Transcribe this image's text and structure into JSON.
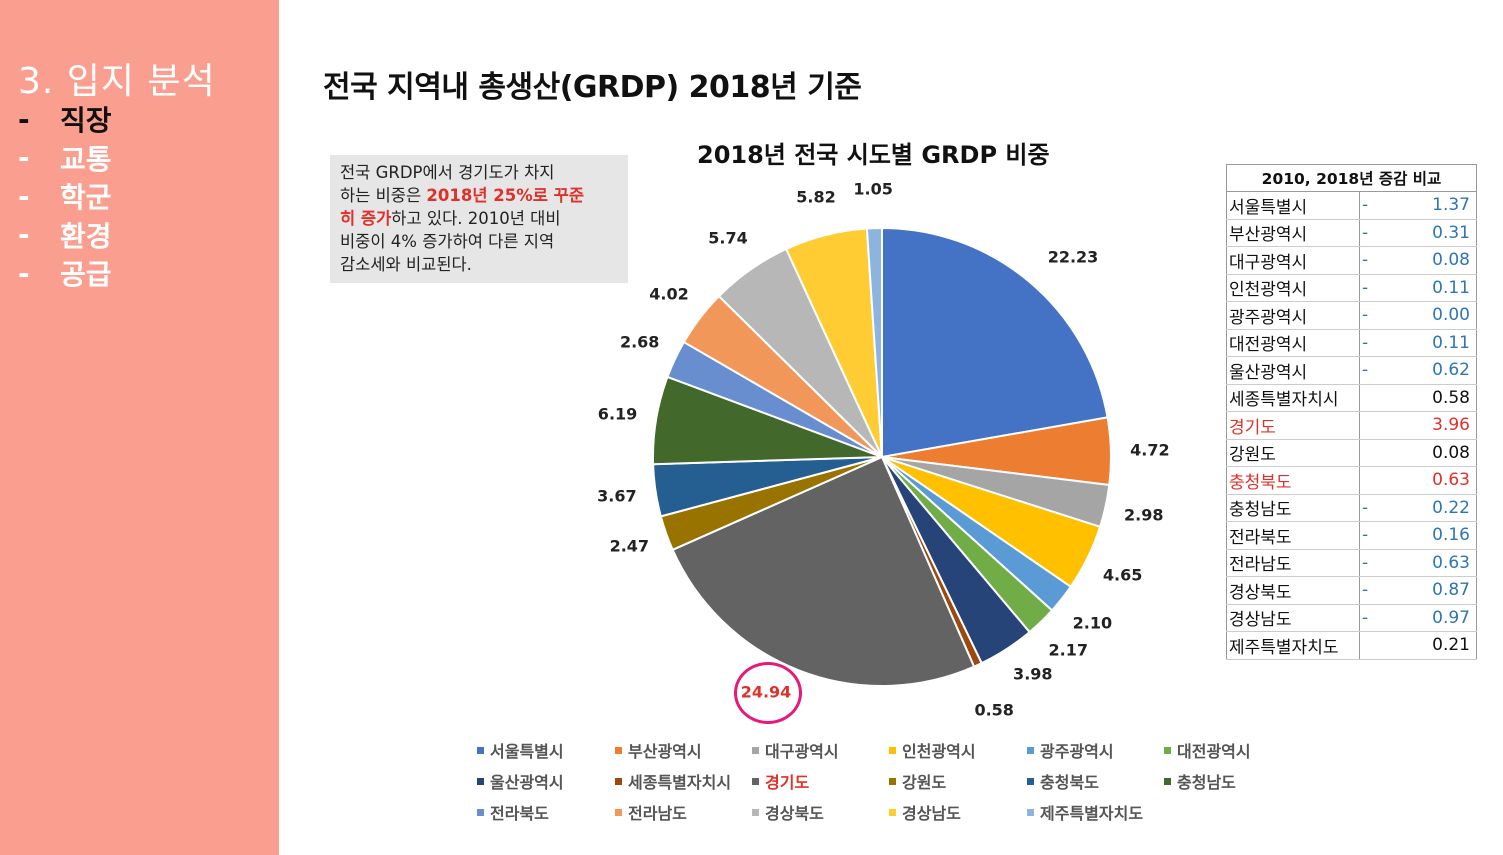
{
  "sidebar": {
    "title": "3. 입지 분석",
    "items": [
      {
        "dash": "-",
        "label": "직장",
        "active": true
      },
      {
        "dash": "-",
        "label": "교통",
        "active": false
      },
      {
        "dash": "-",
        "label": "학군",
        "active": false
      },
      {
        "dash": "-",
        "label": "환경",
        "active": false
      },
      {
        "dash": "-",
        "label": "공급",
        "active": false
      }
    ]
  },
  "page_title": "전국 지역내 총생산(GRDP) 2018년 기준",
  "note": {
    "line1": "전국 GRDP에서 경기도가 차지",
    "line2_a": "하는 비중은 ",
    "line2_b": "2018년 25%로 꾸준",
    "line3_a": "히 증가",
    "line3_b": "하고 있다. 2010년 대비",
    "line4": "비중이 4% 증가하여 다른 지역",
    "line5": "감소세와 비교된다."
  },
  "chart_data": {
    "type": "pie",
    "title": "2018년 전국 시도별 GRDP 비중",
    "legend_position": "bottom",
    "slices": [
      {
        "name": "서울특별시",
        "value": 22.23,
        "color": "#4472c4"
      },
      {
        "name": "부산광역시",
        "value": 4.72,
        "color": "#ed7d31"
      },
      {
        "name": "대구광역시",
        "value": 2.98,
        "color": "#a5a5a5"
      },
      {
        "name": "인천광역시",
        "value": 4.65,
        "color": "#ffc000"
      },
      {
        "name": "광주광역시",
        "value": 2.1,
        "color": "#5b9bd5"
      },
      {
        "name": "대전광역시",
        "value": 2.17,
        "color": "#70ad47"
      },
      {
        "name": "울산광역시",
        "value": 3.98,
        "color": "#264478"
      },
      {
        "name": "세종특별자치시",
        "value": 0.58,
        "color": "#9e480e"
      },
      {
        "name": "경기도",
        "value": 24.94,
        "color": "#636363",
        "highlight": true
      },
      {
        "name": "강원도",
        "value": 2.47,
        "color": "#997300"
      },
      {
        "name": "충청북도",
        "value": 3.67,
        "color": "#255e91"
      },
      {
        "name": "충청남도",
        "value": 6.19,
        "color": "#43682b"
      },
      {
        "name": "전라북도",
        "value": 2.68,
        "color": "#698ed0"
      },
      {
        "name": "전라남도",
        "value": 4.02,
        "color": "#f1975a"
      },
      {
        "name": "경상북도",
        "value": 5.74,
        "color": "#b7b7b7"
      },
      {
        "name": "경상남도",
        "value": 5.82,
        "color": "#ffcd33"
      },
      {
        "name": "제주특별자치도",
        "value": 1.05,
        "color": "#8cb4df"
      }
    ]
  },
  "table": {
    "header": "2010, 2018년 증감 비교",
    "rows": [
      {
        "region": "서울특별시",
        "sign": "-",
        "value": "1.37",
        "color": "#2e75b6",
        "region_red": false
      },
      {
        "region": "부산광역시",
        "sign": "-",
        "value": "0.31",
        "color": "#2e75b6",
        "region_red": false
      },
      {
        "region": "대구광역시",
        "sign": "-",
        "value": "0.08",
        "color": "#2e75b6",
        "region_red": false
      },
      {
        "region": "인천광역시",
        "sign": "-",
        "value": "0.11",
        "color": "#2e75b6",
        "region_red": false
      },
      {
        "region": "광주광역시",
        "sign": "-",
        "value": "0.00",
        "color": "#2e75b6",
        "region_red": false
      },
      {
        "region": "대전광역시",
        "sign": "-",
        "value": "0.11",
        "color": "#2e75b6",
        "region_red": false
      },
      {
        "region": "울산광역시",
        "sign": "-",
        "value": "0.62",
        "color": "#2e75b6",
        "region_red": false
      },
      {
        "region": "세종특별자치시",
        "sign": "",
        "value": "0.58",
        "color": "#111111",
        "region_red": false
      },
      {
        "region": "경기도",
        "sign": "",
        "value": "3.96",
        "color": "#e0302a",
        "region_red": true
      },
      {
        "region": "강원도",
        "sign": "",
        "value": "0.08",
        "color": "#111111",
        "region_red": false
      },
      {
        "region": "충청북도",
        "sign": "",
        "value": "0.63",
        "color": "#e0302a",
        "region_red": true
      },
      {
        "region": "충청남도",
        "sign": "-",
        "value": "0.22",
        "color": "#2e75b6",
        "region_red": false
      },
      {
        "region": "전라북도",
        "sign": "-",
        "value": "0.16",
        "color": "#2e75b6",
        "region_red": false
      },
      {
        "region": "전라남도",
        "sign": "-",
        "value": "0.63",
        "color": "#2e75b6",
        "region_red": false
      },
      {
        "region": "경상북도",
        "sign": "-",
        "value": "0.87",
        "color": "#2e75b6",
        "region_red": false
      },
      {
        "region": "경상남도",
        "sign": "-",
        "value": "0.97",
        "color": "#2e75b6",
        "region_red": false
      },
      {
        "region": "제주특별자치도",
        "sign": "",
        "value": "0.21",
        "color": "#111111",
        "region_red": false
      }
    ]
  }
}
